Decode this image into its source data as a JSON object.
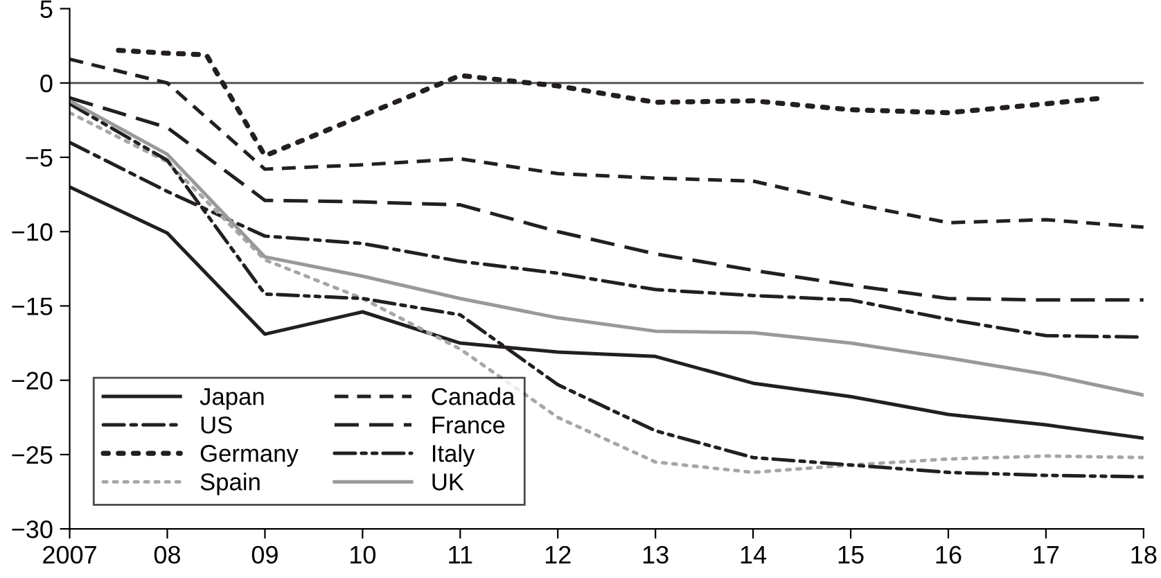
{
  "chart_data": {
    "type": "line",
    "x": [
      2007,
      2008,
      2009,
      2010,
      2011,
      2012,
      2013,
      2014,
      2015,
      2016,
      2017,
      2018
    ],
    "xlim": [
      2007,
      2018
    ],
    "xticks": [
      {
        "value": 2007,
        "label": "2007"
      },
      {
        "value": 2008,
        "label": "08"
      },
      {
        "value": 2009,
        "label": "09"
      },
      {
        "value": 2010,
        "label": "10"
      },
      {
        "value": 2011,
        "label": "11"
      },
      {
        "value": 2012,
        "label": "12"
      },
      {
        "value": 2013,
        "label": "13"
      },
      {
        "value": 2014,
        "label": "14"
      },
      {
        "value": 2015,
        "label": "15"
      },
      {
        "value": 2016,
        "label": "16"
      },
      {
        "value": 2017,
        "label": "17"
      },
      {
        "value": 2018,
        "label": "18"
      }
    ],
    "ylim": [
      -30,
      5
    ],
    "yticks": [
      -30,
      -25,
      -20,
      -15,
      -10,
      -5,
      0,
      5
    ],
    "grid": false,
    "legend": "bottom left",
    "ref_lines": [
      {
        "axis": "y",
        "value": 0,
        "color": "#555555"
      }
    ],
    "series": [
      {
        "name": "Japan",
        "color": "#231f20",
        "line_style": "solid",
        "values": [
          -7.0,
          -10.1,
          -16.9,
          -15.4,
          -17.5,
          -18.1,
          -18.4,
          -20.2,
          -21.1,
          -22.3,
          -23.0,
          -23.9
        ]
      },
      {
        "name": "US",
        "color": "#231f20",
        "line_style": "dashdot",
        "values": [
          -4.0,
          -7.3,
          -10.3,
          -10.8,
          -12.0,
          -12.8,
          -13.9,
          -14.3,
          -14.6,
          -15.9,
          -17.0,
          -17.1
        ]
      },
      {
        "name": "Germany",
        "color": "#231f20",
        "line_style": "dotted",
        "x": [
          2007.5,
          2008,
          2008.4,
          2009,
          2011,
          2012,
          2013,
          2014,
          2015,
          2016,
          2017,
          2017.6
        ],
        "values": [
          2.2,
          2.0,
          1.9,
          -4.9,
          0.5,
          -0.2,
          -1.3,
          -1.2,
          -1.8,
          -2.0,
          -1.4,
          -1.0
        ]
      },
      {
        "name": "Spain",
        "color": "#a6a6a6",
        "line_style": "dotted",
        "values": [
          -2.0,
          -5.3,
          -11.9,
          -14.5,
          -17.9,
          -22.5,
          -25.5,
          -26.2,
          -25.7,
          -25.3,
          -25.1,
          -25.2
        ]
      },
      {
        "name": "Canada",
        "color": "#231f20",
        "line_style": "dashed",
        "values": [
          1.6,
          0.0,
          -5.8,
          -5.5,
          -5.1,
          -6.1,
          -6.4,
          -6.6,
          -8.1,
          -9.4,
          -9.2,
          -9.7
        ]
      },
      {
        "name": "France",
        "color": "#231f20",
        "line_style": "longdash",
        "values": [
          -1.0,
          -3.0,
          -7.9,
          -8.0,
          -8.2,
          -10.0,
          -11.5,
          -12.6,
          -13.6,
          -14.5,
          -14.6,
          -14.6
        ]
      },
      {
        "name": "Italy",
        "color": "#231f20",
        "line_style": "dashdotdot",
        "values": [
          -1.4,
          -5.2,
          -14.2,
          -14.5,
          -15.6,
          -20.3,
          -23.4,
          -25.2,
          -25.7,
          -26.2,
          -26.4,
          -26.5
        ]
      },
      {
        "name": "UK",
        "color": "#999999",
        "line_style": "solid",
        "values": [
          -1.2,
          -4.8,
          -11.7,
          -13.0,
          -14.5,
          -15.8,
          -16.7,
          -16.8,
          -17.5,
          -18.5,
          -19.6,
          -21.0
        ]
      }
    ]
  }
}
